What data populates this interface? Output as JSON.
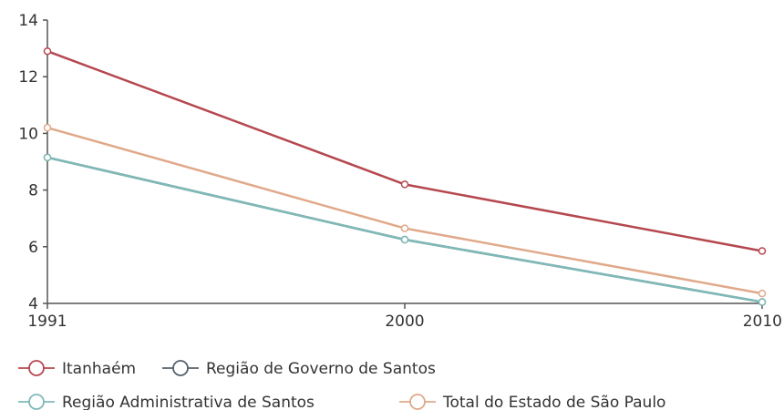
{
  "chart_data": {
    "type": "line",
    "title": "",
    "xlabel": "",
    "ylabel": "",
    "x": [
      "1991",
      "2000",
      "2010"
    ],
    "ylim": [
      4,
      14
    ],
    "yticks": [
      "4",
      "6",
      "8",
      "10",
      "12",
      "14"
    ],
    "grid": false,
    "legend_position": "bottom-left",
    "series": [
      {
        "name": "Itanhaém",
        "color": "#b5484f",
        "values": [
          12.9,
          8.2,
          5.85
        ]
      },
      {
        "name": "Região de Governo de Santos",
        "color": "#55606b",
        "values": [
          9.15,
          6.25,
          4.05
        ]
      },
      {
        "name": "Região Administrativa de Santos",
        "color": "#7fb9b8",
        "values": [
          9.15,
          6.25,
          4.05
        ]
      },
      {
        "name": "Total do Estado de São Paulo",
        "color": "#e0a98a",
        "values": [
          10.2,
          6.65,
          4.35
        ]
      }
    ]
  }
}
